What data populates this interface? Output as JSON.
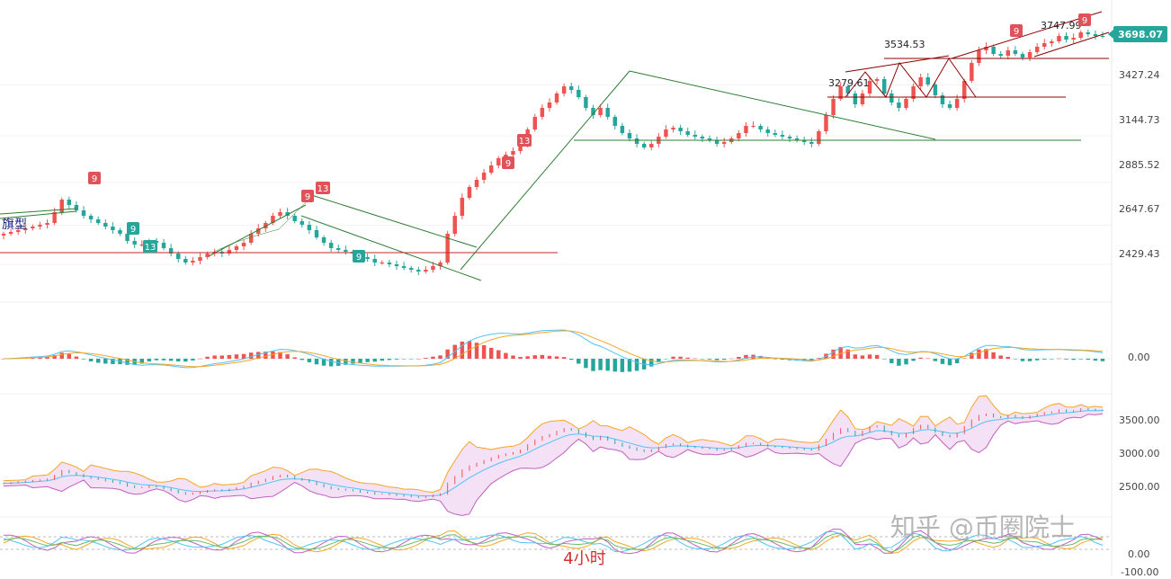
{
  "chart_data": {
    "type": "candlestick",
    "timeframe_label": "4小时",
    "pattern_label": "旗型",
    "watermark": "知乎 @币圈院士",
    "colors": {
      "up": "#ef5350",
      "down": "#26a69a",
      "trendline": "#2e7d32",
      "support": "#c62828",
      "price_tag": "#26a69a",
      "td9_red": "#e0525a",
      "td9_green": "#26a69a"
    },
    "price_axis": {
      "ticks": [
        "3427.24",
        "3144.73",
        "2885.52",
        "2647.67",
        "2429.43"
      ],
      "current_price": "3698.07"
    },
    "price_annotations": [
      "3534.53",
      "3279.61",
      "3747.99"
    ],
    "td_markers": {
      "red": [
        "9",
        "9",
        "13",
        "9",
        "13",
        "9",
        "9"
      ],
      "green": [
        "9",
        "13",
        "9"
      ]
    },
    "close_series": [
      2600,
      2610,
      2620,
      2630,
      2640,
      2650,
      2660,
      2720,
      2790,
      2760,
      2730,
      2700,
      2680,
      2660,
      2640,
      2620,
      2600,
      2560,
      2540,
      2540,
      2560,
      2550,
      2520,
      2490,
      2460,
      2440,
      2450,
      2470,
      2490,
      2500,
      2490,
      2510,
      2530,
      2550,
      2600,
      2630,
      2660,
      2700,
      2720,
      2700,
      2670,
      2650,
      2620,
      2580,
      2550,
      2520,
      2510,
      2500,
      2490,
      2470,
      2460,
      2440,
      2440,
      2430,
      2420,
      2410,
      2400,
      2390,
      2400,
      2420,
      2440,
      2600,
      2700,
      2800,
      2860,
      2900,
      2940,
      2980,
      3020,
      3040,
      3060,
      3100,
      3180,
      3250,
      3300,
      3330,
      3380,
      3420,
      3400,
      3360,
      3300,
      3260,
      3300,
      3250,
      3200,
      3160,
      3130,
      3100,
      3080,
      3100,
      3140,
      3180,
      3190,
      3170,
      3150,
      3140,
      3130,
      3120,
      3100,
      3110,
      3130,
      3160,
      3200,
      3200,
      3180,
      3160,
      3150,
      3140,
      3130,
      3120,
      3110,
      3100,
      3170,
      3260,
      3350,
      3420,
      3380,
      3320,
      3380,
      3450,
      3460,
      3380,
      3330,
      3300,
      3350,
      3420,
      3470,
      3430,
      3370,
      3320,
      3300,
      3350,
      3450,
      3550,
      3620,
      3640,
      3600,
      3590,
      3620,
      3600,
      3580,
      3610,
      3640,
      3660,
      3670,
      3700,
      3680,
      3690,
      3720,
      3710,
      3700,
      3698
    ],
    "y_range": [
      2300,
      3850
    ],
    "macd_axis_tick": "0.00",
    "boll_axis_ticks": [
      "3500.00",
      "3000.00",
      "2500.00"
    ],
    "rsi_axis_tick": "0.00",
    "bottom_axis_tick": "-100.00"
  }
}
